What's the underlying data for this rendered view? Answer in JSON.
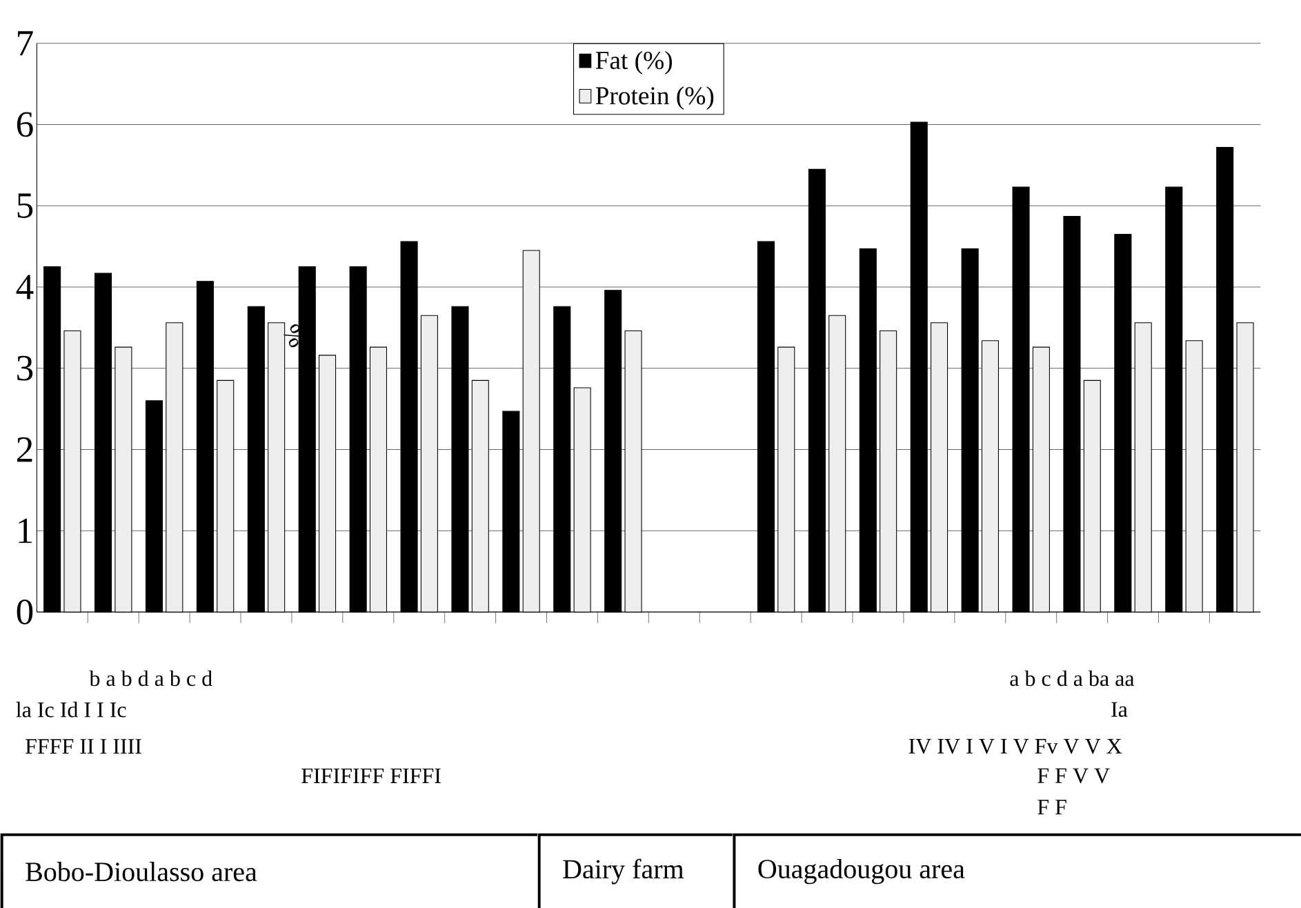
{
  "chart_data": {
    "type": "bar",
    "ylabel": "%",
    "categories": [
      null,
      null,
      null,
      null,
      null,
      null,
      null,
      null,
      null,
      null,
      null,
      null,
      null,
      null,
      null,
      null,
      null,
      null,
      null,
      null,
      null,
      null,
      null,
      null
    ],
    "series": [
      {
        "name": "Fat (%)",
        "color": "#000000",
        "values": [
          4.25,
          4.17,
          2.6,
          4.07,
          3.76,
          4.25,
          4.25,
          4.56,
          3.76,
          2.47,
          3.76,
          3.96,
          null,
          null,
          4.56,
          5.45,
          4.47,
          6.03,
          4.47,
          5.23,
          4.87,
          4.65,
          5.23,
          5.72
        ]
      },
      {
        "name": "Protein (%)",
        "color": "#eeeeee",
        "values": [
          3.46,
          3.26,
          3.56,
          2.85,
          3.56,
          3.16,
          3.26,
          3.65,
          2.85,
          4.45,
          2.76,
          3.46,
          null,
          null,
          3.26,
          3.65,
          3.46,
          3.56,
          3.34,
          3.26,
          2.85,
          3.56,
          3.34,
          3.56
        ]
      }
    ],
    "ylim": [
      0,
      7
    ],
    "yticks": [
      0,
      1,
      2,
      3,
      4,
      5,
      6,
      7
    ],
    "grid": "y",
    "legend": "top",
    "annotations": [
      "b a b d a b c d",
      "la Ic Id I I Ic",
      "FFFF II I IIII",
      "FIFIFIFF FIFFI",
      "a b c d a ba aa",
      "Ia",
      "IV IV I V I V Fv V V X",
      "F F V V",
      "F F",
      "Bobo-Dioulasso area",
      "Dairy farm",
      "Ouagadougou area"
    ]
  }
}
